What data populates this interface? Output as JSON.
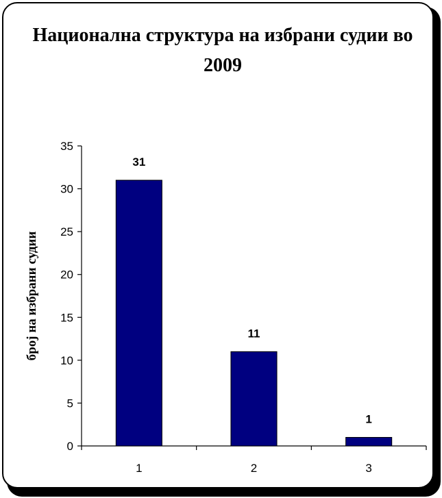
{
  "chart_data": {
    "type": "bar",
    "title": "Национална структура на избрани судии во 2009",
    "xlabel": "",
    "ylabel": "број на избрани судии",
    "categories": [
      "1",
      "2",
      "3"
    ],
    "values": [
      31,
      11,
      1
    ],
    "ylim": [
      0,
      35
    ],
    "yticks": [
      0,
      5,
      10,
      15,
      20,
      25,
      30,
      35
    ],
    "grid": false,
    "legend": "none",
    "bar_color": "#000080"
  }
}
